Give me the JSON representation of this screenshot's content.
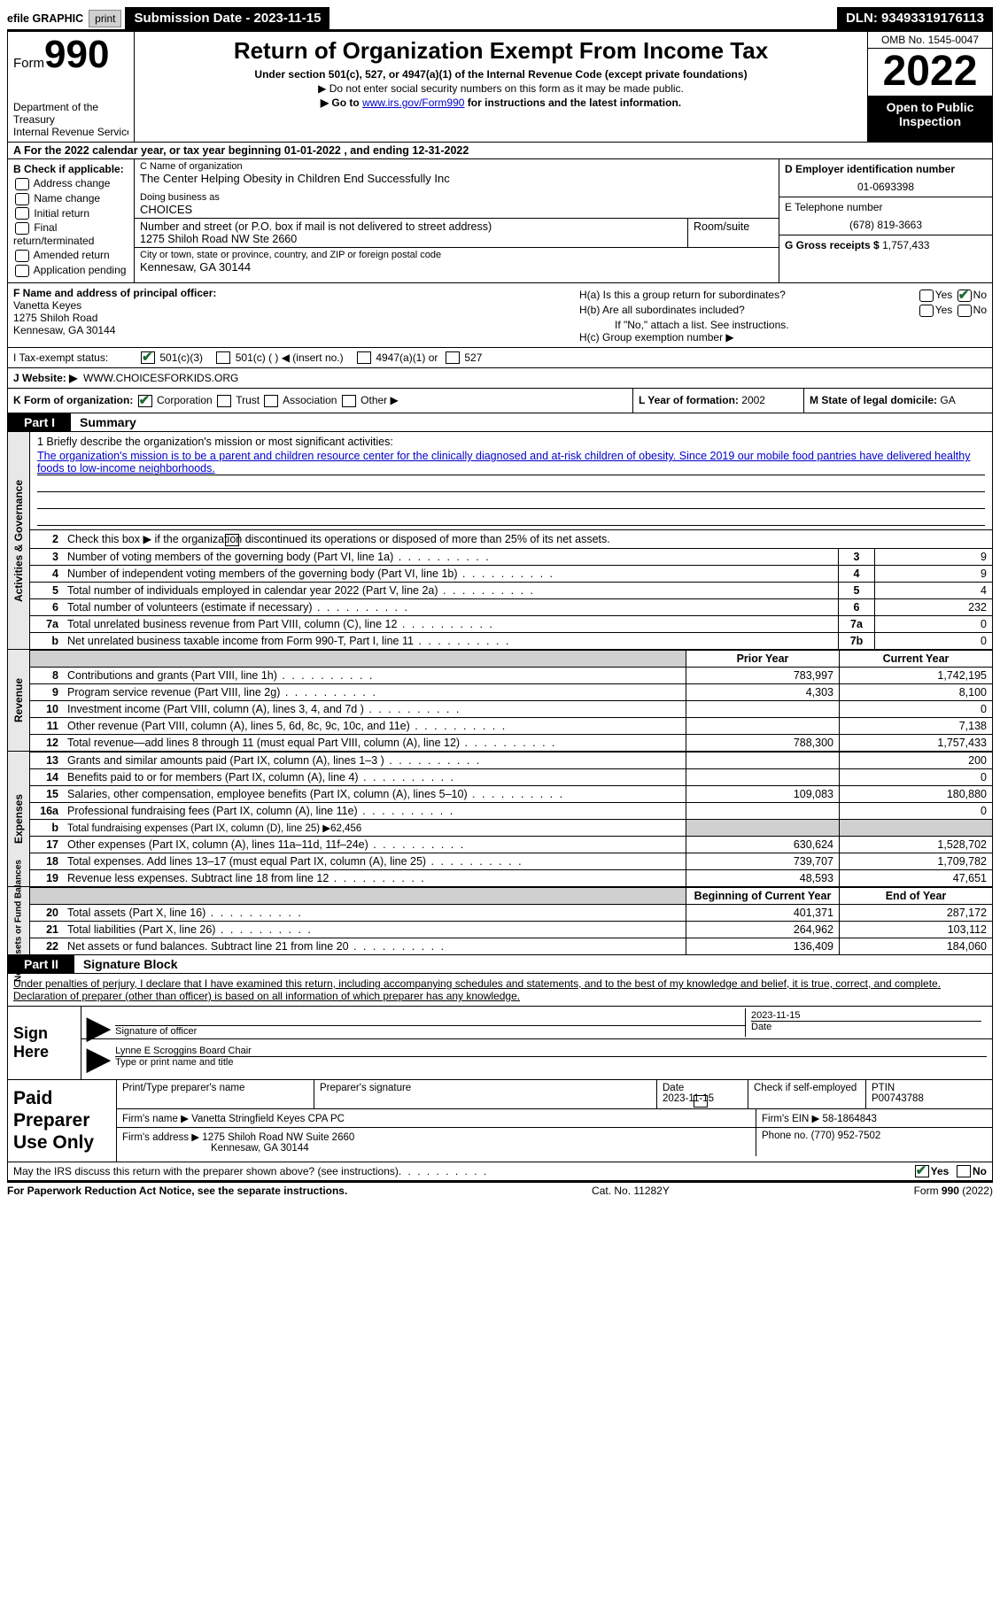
{
  "topbar": {
    "efile": "efile GRAPHIC",
    "print": "print",
    "submission": "Submission Date - 2023-11-15",
    "dln": "DLN: 93493319176113"
  },
  "header": {
    "form_word": "Form",
    "form_num": "990",
    "dept": "Department of the Treasury",
    "irs": "Internal Revenue Service",
    "title": "Return of Organization Exempt From Income Tax",
    "subtitle": "Under section 501(c), 527, or 4947(a)(1) of the Internal Revenue Code (except private foundations)",
    "note1": "▶ Do not enter social security numbers on this form as it may be made public.",
    "note2_pre": "▶ Go to ",
    "note2_link": "www.irs.gov/Form990",
    "note2_post": " for instructions and the latest information.",
    "omb": "OMB No. 1545-0047",
    "year": "2022",
    "inspect": "Open to Public Inspection"
  },
  "rowA": "A For the 2022 calendar year, or tax year beginning 01-01-2022    , and ending 12-31-2022",
  "B": {
    "label": "B Check if applicable:",
    "opts": [
      "Address change",
      "Name change",
      "Initial return",
      "Final return/terminated",
      "Amended return",
      "Application pending"
    ]
  },
  "C": {
    "name_label": "C Name of organization",
    "name": "The Center Helping Obesity in Children End Successfully Inc",
    "dba_label": "Doing business as",
    "dba": "CHOICES",
    "street_label": "Number and street (or P.O. box if mail is not delivered to street address)",
    "room_label": "Room/suite",
    "street": "1275 Shiloh Road NW Ste 2660",
    "city_label": "City or town, state or province, country, and ZIP or foreign postal code",
    "city": "Kennesaw, GA  30144"
  },
  "D": {
    "ein_label": "D Employer identification number",
    "ein": "01-0693398",
    "tel_label": "E Telephone number",
    "tel": "(678) 819-3663",
    "gross_label": "G Gross receipts $",
    "gross": "1,757,433"
  },
  "F": {
    "label": "F  Name and address of principal officer:",
    "name": "Vanetta Keyes",
    "addr1": "1275 Shiloh Road",
    "addr2": "Kennesaw, GA  30144"
  },
  "H": {
    "a": "H(a)  Is this a group return for subordinates?",
    "b": "H(b)  Are all subordinates included?",
    "b_note": "If \"No,\" attach a list. See instructions.",
    "c": "H(c)  Group exemption number ▶",
    "yes": "Yes",
    "no": "No"
  },
  "I": {
    "label": "I    Tax-exempt status:",
    "opt1": "501(c)(3)",
    "opt2": "501(c) (  ) ◀ (insert no.)",
    "opt3": "4947(a)(1) or",
    "opt4": "527"
  },
  "J": {
    "label": "J   Website: ▶",
    "val": "WWW.CHOICESFORKIDS.ORG"
  },
  "K": {
    "label": "K Form of organization:",
    "corp": "Corporation",
    "trust": "Trust",
    "assoc": "Association",
    "other": "Other ▶"
  },
  "L": {
    "label": "L Year of formation:",
    "val": "2002"
  },
  "M": {
    "label": "M State of legal domicile:",
    "val": "GA"
  },
  "partI": {
    "label": "Part I",
    "title": "Summary"
  },
  "mission": {
    "q": "1   Briefly describe the organization's mission or most significant activities:",
    "text": "The organization's mission is to be a parent and children resource center for the clinically diagnosed and at-risk children of obesity. Since 2019 our mobile food pantries have delivered healthy foods to low-income neighborhoods."
  },
  "line2": "Check this box ▶       if the organization discontinued its operations or disposed of more than 25% of its net assets.",
  "gov_lines": [
    {
      "n": "3",
      "t": "Number of voting members of the governing body (Part VI, line 1a)",
      "box": "3",
      "v": "9"
    },
    {
      "n": "4",
      "t": "Number of independent voting members of the governing body (Part VI, line 1b)",
      "box": "4",
      "v": "9"
    },
    {
      "n": "5",
      "t": "Total number of individuals employed in calendar year 2022 (Part V, line 2a)",
      "box": "5",
      "v": "4"
    },
    {
      "n": "6",
      "t": "Total number of volunteers (estimate if necessary)",
      "box": "6",
      "v": "232"
    },
    {
      "n": "7a",
      "t": "Total unrelated business revenue from Part VIII, column (C), line 12",
      "box": "7a",
      "v": "0"
    },
    {
      "n": "b",
      "t": "Net unrelated business taxable income from Form 990-T, Part I, line 11",
      "box": "7b",
      "v": "0"
    }
  ],
  "hdr_prior": "Prior Year",
  "hdr_curr": "Current Year",
  "rev_lines": [
    {
      "n": "8",
      "t": "Contributions and grants (Part VIII, line 1h)",
      "p": "783,997",
      "c": "1,742,195"
    },
    {
      "n": "9",
      "t": "Program service revenue (Part VIII, line 2g)",
      "p": "4,303",
      "c": "8,100"
    },
    {
      "n": "10",
      "t": "Investment income (Part VIII, column (A), lines 3, 4, and 7d )",
      "p": "",
      "c": "0"
    },
    {
      "n": "11",
      "t": "Other revenue (Part VIII, column (A), lines 5, 6d, 8c, 9c, 10c, and 11e)",
      "p": "",
      "c": "7,138"
    },
    {
      "n": "12",
      "t": "Total revenue—add lines 8 through 11 (must equal Part VIII, column (A), line 12)",
      "p": "788,300",
      "c": "1,757,433"
    }
  ],
  "exp_lines": [
    {
      "n": "13",
      "t": "Grants and similar amounts paid (Part IX, column (A), lines 1–3 )",
      "p": "",
      "c": "200"
    },
    {
      "n": "14",
      "t": "Benefits paid to or for members (Part IX, column (A), line 4)",
      "p": "",
      "c": "0"
    },
    {
      "n": "15",
      "t": "Salaries, other compensation, employee benefits (Part IX, column (A), lines 5–10)",
      "p": "109,083",
      "c": "180,880"
    },
    {
      "n": "16a",
      "t": "Professional fundraising fees (Part IX, column (A), line 11e)",
      "p": "",
      "c": "0"
    },
    {
      "n": "b",
      "t": "Total fundraising expenses (Part IX, column (D), line 25) ▶62,456",
      "grey": true
    },
    {
      "n": "17",
      "t": "Other expenses (Part IX, column (A), lines 11a–11d, 11f–24e)",
      "p": "630,624",
      "c": "1,528,702"
    },
    {
      "n": "18",
      "t": "Total expenses. Add lines 13–17 (must equal Part IX, column (A), line 25)",
      "p": "739,707",
      "c": "1,709,782"
    },
    {
      "n": "19",
      "t": "Revenue less expenses. Subtract line 18 from line 12",
      "p": "48,593",
      "c": "47,651"
    }
  ],
  "hdr_begin": "Beginning of Current Year",
  "hdr_end": "End of Year",
  "na_lines": [
    {
      "n": "20",
      "t": "Total assets (Part X, line 16)",
      "p": "401,371",
      "c": "287,172"
    },
    {
      "n": "21",
      "t": "Total liabilities (Part X, line 26)",
      "p": "264,962",
      "c": "103,112"
    },
    {
      "n": "22",
      "t": "Net assets or fund balances. Subtract line 21 from line 20",
      "p": "136,409",
      "c": "184,060"
    }
  ],
  "vtabs": {
    "gov": "Activities & Governance",
    "rev": "Revenue",
    "exp": "Expenses",
    "na": "Net Assets or Fund Balances"
  },
  "partII": {
    "label": "Part II",
    "title": "Signature Block"
  },
  "sig_text": "Under penalties of perjury, I declare that I have examined this return, including accompanying schedules and statements, and to the best of my knowledge and belief, it is true, correct, and complete. Declaration of preparer (other than officer) is based on all information of which preparer has any knowledge.",
  "sign": {
    "label": "Sign Here",
    "officer_sig": "Signature of officer",
    "date": "2023-11-15",
    "date_label": "Date",
    "name": "Lynne E Scroggins  Board Chair",
    "name_label": "Type or print name and title"
  },
  "prep": {
    "label": "Paid Preparer Use Only",
    "name_label": "Print/Type preparer's name",
    "sig_label": "Preparer's signature",
    "date_label": "Date",
    "date": "2023-11-15",
    "check_label": "Check        if self-employed",
    "ptin_label": "PTIN",
    "ptin": "P00743788",
    "firm_name_label": "Firm's name    ▶",
    "firm_name": "Vanetta Stringfield Keyes CPA PC",
    "firm_ein_label": "Firm's EIN ▶",
    "firm_ein": "58-1864843",
    "firm_addr_label": "Firm's address ▶",
    "firm_addr1": "1275 Shiloh Road NW Suite 2660",
    "firm_addr2": "Kennesaw, GA  30144",
    "phone_label": "Phone no.",
    "phone": "(770) 952-7502"
  },
  "discuss": {
    "q": "May the IRS discuss this return with the preparer shown above? (see instructions)",
    "yes": "Yes",
    "no": "No"
  },
  "footer": {
    "left": "For Paperwork Reduction Act Notice, see the separate instructions.",
    "mid": "Cat. No. 11282Y",
    "right": "Form 990 (2022)"
  }
}
